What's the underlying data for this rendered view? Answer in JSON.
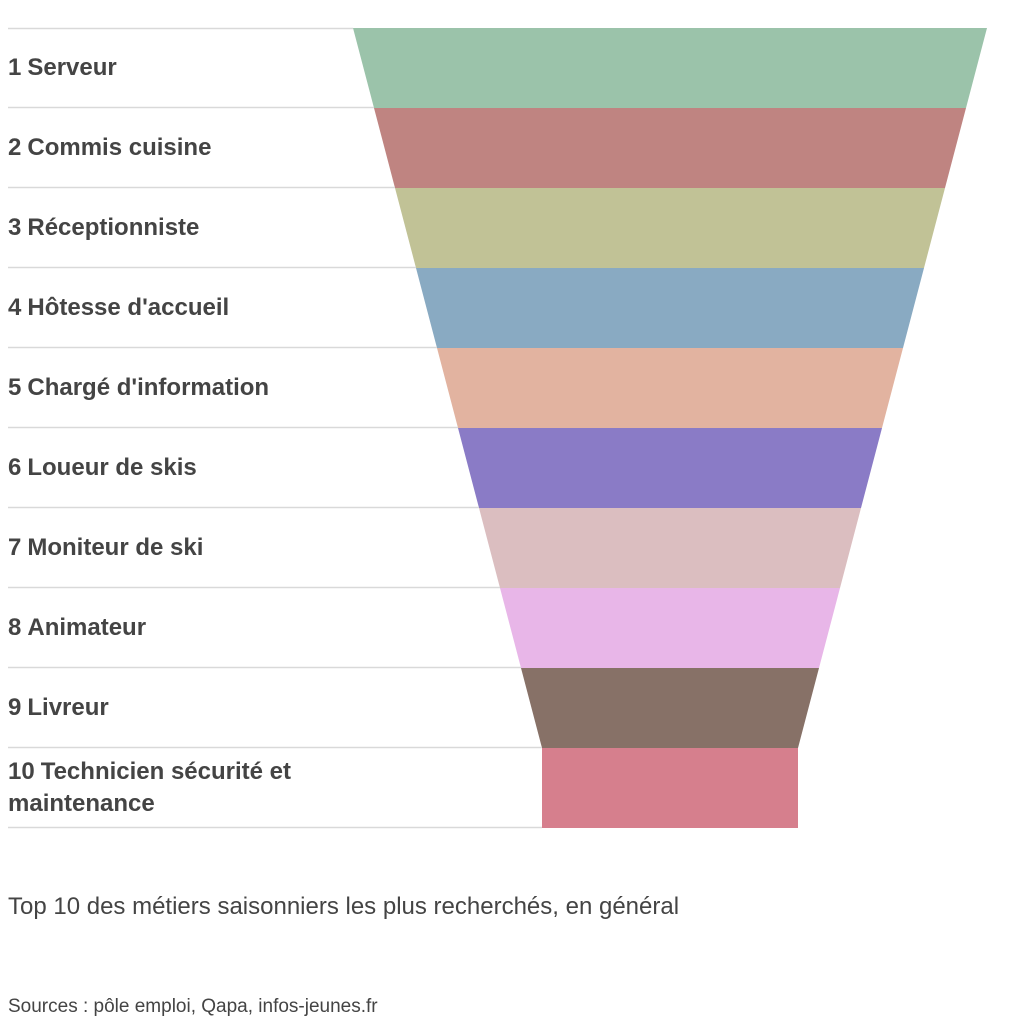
{
  "chart_data": {
    "type": "funnel",
    "title": "Top 10 des métiers saisonniers les plus recherchés, en général",
    "source": "Sources : pôle emploi, Qapa, infos-jeunes.fr",
    "categories": [
      "Serveur",
      "Commis cuisine",
      "Réceptionniste",
      "Hôtesse d'accueil",
      "Chargé d'information",
      "Loueur de skis",
      "Moniteur de ski",
      "Animateur",
      "Livreur",
      "Technicien sécurité et maintenance"
    ],
    "ranks": [
      "1",
      "2",
      "3",
      "4",
      "5",
      "6",
      "7",
      "8",
      "9",
      "10"
    ],
    "values": [
      10,
      9,
      8,
      7,
      6,
      5,
      4,
      3,
      2,
      1
    ],
    "colors": [
      "#9BC3AA",
      "#BF8481",
      "#C1C296",
      "#89AAC2",
      "#E2B3A0",
      "#8A7BC6",
      "#DBBEC0",
      "#E8B6E8",
      "#877167",
      "#D67F8D"
    ]
  }
}
